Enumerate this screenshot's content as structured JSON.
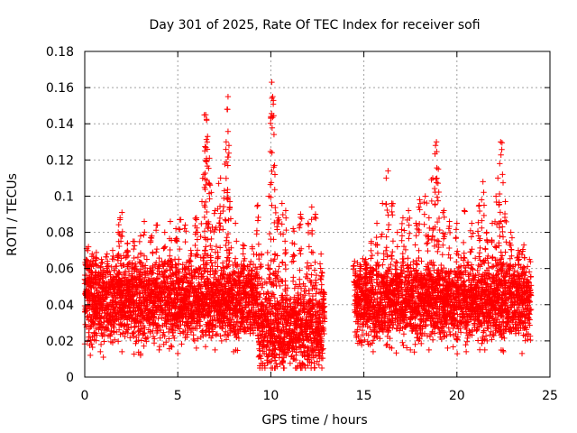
{
  "chart_data": {
    "type": "scatter",
    "title": "Day 301 of 2025, Rate Of TEC Index for receiver sofi",
    "xlabel": "GPS time / hours",
    "ylabel": "ROTI / TECUs",
    "xlim": [
      0,
      25
    ],
    "ylim": [
      0,
      0.18
    ],
    "x_ticks": [
      0,
      5,
      10,
      15,
      20,
      25
    ],
    "x_tick_labels": [
      "0",
      "5",
      "10",
      "15",
      "20",
      "25"
    ],
    "y_ticks": [
      0,
      0.02,
      0.04,
      0.06,
      0.08,
      0.1,
      0.12,
      0.14,
      0.16,
      0.18
    ],
    "y_tick_labels": [
      "0",
      "0.02",
      "0.04",
      "0.06",
      "0.08",
      "0.1",
      "0.12",
      "0.14",
      "0.16",
      "0.18"
    ],
    "grid": true,
    "marker": "+",
    "color": "#ff0000",
    "data_gap_hours": [
      13.0,
      14.5
    ],
    "series": [
      {
        "points": [
          [
            0.0,
            0.054
          ],
          [
            0.1,
            0.071
          ],
          [
            0.2,
            0.072
          ],
          [
            0.4,
            0.068
          ],
          [
            0.6,
            0.066
          ],
          [
            0.9,
            0.065
          ],
          [
            1.2,
            0.068
          ],
          [
            1.5,
            0.07
          ],
          [
            1.8,
            0.08
          ],
          [
            1.9,
            0.088
          ],
          [
            2.0,
            0.091
          ],
          [
            2.3,
            0.074
          ],
          [
            2.6,
            0.075
          ],
          [
            3.0,
            0.078
          ],
          [
            3.2,
            0.086
          ],
          [
            3.6,
            0.078
          ],
          [
            3.9,
            0.084
          ],
          [
            4.3,
            0.08
          ],
          [
            4.6,
            0.086
          ],
          [
            4.9,
            0.082
          ],
          [
            5.1,
            0.087
          ],
          [
            5.4,
            0.084
          ],
          [
            5.7,
            0.07
          ],
          [
            6.0,
            0.088
          ],
          [
            6.3,
            0.097
          ],
          [
            6.4,
            0.112
          ],
          [
            6.45,
            0.125
          ],
          [
            6.5,
            0.145
          ],
          [
            6.55,
            0.142
          ],
          [
            6.6,
            0.133
          ],
          [
            6.7,
            0.121
          ],
          [
            6.8,
            0.102
          ],
          [
            7.0,
            0.092
          ],
          [
            7.2,
            0.107
          ],
          [
            7.3,
            0.11
          ],
          [
            7.5,
            0.103
          ],
          [
            7.6,
            0.13
          ],
          [
            7.65,
            0.148
          ],
          [
            7.7,
            0.155
          ],
          [
            7.75,
            0.128
          ],
          [
            7.8,
            0.097
          ],
          [
            8.1,
            0.085
          ],
          [
            8.5,
            0.073
          ],
          [
            9.0,
            0.072
          ],
          [
            9.3,
            0.095
          ],
          [
            9.5,
            0.068
          ],
          [
            9.9,
            0.1
          ],
          [
            10.0,
            0.144
          ],
          [
            10.05,
            0.163
          ],
          [
            10.1,
            0.155
          ],
          [
            10.2,
            0.117
          ],
          [
            10.4,
            0.088
          ],
          [
            10.6,
            0.096
          ],
          [
            10.8,
            0.092
          ],
          [
            11.2,
            0.082
          ],
          [
            11.6,
            0.09
          ],
          [
            12.0,
            0.085
          ],
          [
            12.2,
            0.094
          ],
          [
            12.4,
            0.09
          ],
          [
            12.7,
            0.068
          ],
          [
            14.5,
            0.064
          ],
          [
            14.8,
            0.062
          ],
          [
            15.1,
            0.065
          ],
          [
            15.4,
            0.075
          ],
          [
            15.7,
            0.085
          ],
          [
            16.0,
            0.096
          ],
          [
            16.2,
            0.11
          ],
          [
            16.3,
            0.114
          ],
          [
            16.5,
            0.096
          ],
          [
            16.8,
            0.08
          ],
          [
            17.1,
            0.088
          ],
          [
            17.4,
            0.092
          ],
          [
            17.8,
            0.085
          ],
          [
            18.0,
            0.098
          ],
          [
            18.3,
            0.1
          ],
          [
            18.5,
            0.088
          ],
          [
            18.7,
            0.11
          ],
          [
            18.85,
            0.128
          ],
          [
            18.9,
            0.13
          ],
          [
            19.0,
            0.115
          ],
          [
            19.3,
            0.092
          ],
          [
            19.6,
            0.086
          ],
          [
            20.0,
            0.085
          ],
          [
            20.4,
            0.092
          ],
          [
            20.8,
            0.085
          ],
          [
            21.2,
            0.095
          ],
          [
            21.4,
            0.108
          ],
          [
            21.6,
            0.08
          ],
          [
            21.9,
            0.085
          ],
          [
            22.1,
            0.1
          ],
          [
            22.2,
            0.11
          ],
          [
            22.3,
            0.118
          ],
          [
            22.35,
            0.13
          ],
          [
            22.45,
            0.112
          ],
          [
            22.6,
            0.097
          ],
          [
            22.9,
            0.08
          ],
          [
            23.3,
            0.07
          ],
          [
            23.6,
            0.073
          ],
          [
            23.9,
            0.065
          ],
          [
            0.3,
            0.012
          ],
          [
            1.0,
            0.011
          ],
          [
            2.0,
            0.014
          ],
          [
            3.0,
            0.012
          ],
          [
            4.0,
            0.015
          ],
          [
            5.0,
            0.013
          ],
          [
            6.0,
            0.016
          ],
          [
            7.0,
            0.015
          ],
          [
            8.0,
            0.014
          ],
          [
            9.4,
            0.012
          ],
          [
            9.8,
            0.008
          ],
          [
            10.2,
            0.005
          ],
          [
            10.6,
            0.008
          ],
          [
            11.2,
            0.01
          ],
          [
            12.0,
            0.01
          ],
          [
            12.6,
            0.013
          ],
          [
            14.6,
            0.022
          ],
          [
            15.5,
            0.014
          ],
          [
            16.5,
            0.016
          ],
          [
            17.5,
            0.015
          ],
          [
            18.5,
            0.015
          ],
          [
            19.5,
            0.016
          ],
          [
            20.5,
            0.014
          ],
          [
            21.5,
            0.015
          ],
          [
            22.5,
            0.014
          ],
          [
            23.5,
            0.013
          ]
        ]
      }
    ]
  }
}
